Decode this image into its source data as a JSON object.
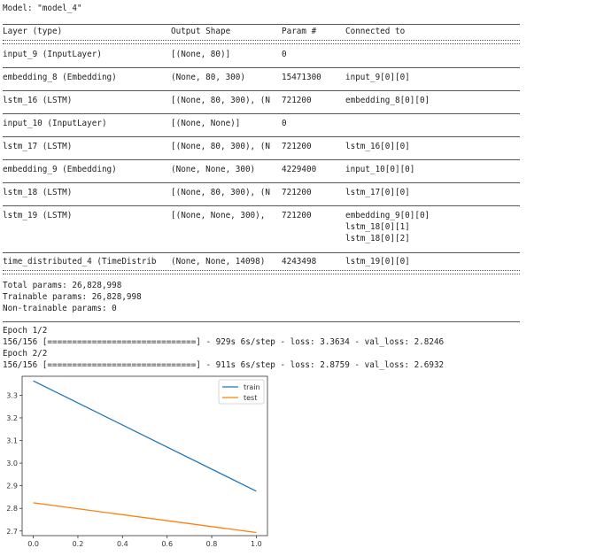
{
  "model_line": "Model: \"model_4\"",
  "headers": {
    "layer": "Layer (type)",
    "shape": "Output Shape",
    "param": "Param #",
    "conn": "Connected to"
  },
  "rows": [
    {
      "layer": "input_9 (InputLayer)",
      "shape": "[(None, 80)]",
      "param": "0",
      "conn": []
    },
    {
      "layer": "embedding_8 (Embedding)",
      "shape": "(None, 80, 300)",
      "param": "15471300",
      "conn": [
        "input_9[0][0]"
      ]
    },
    {
      "layer": "lstm_16 (LSTM)",
      "shape": "[(None, 80, 300), (N",
      "param": "721200",
      "conn": [
        "embedding_8[0][0]"
      ]
    },
    {
      "layer": "input_10 (InputLayer)",
      "shape": "[(None, None)]",
      "param": "0",
      "conn": []
    },
    {
      "layer": "lstm_17 (LSTM)",
      "shape": "[(None, 80, 300), (N",
      "param": "721200",
      "conn": [
        "lstm_16[0][0]"
      ]
    },
    {
      "layer": "embedding_9 (Embedding)",
      "shape": "(None, None, 300)",
      "param": "4229400",
      "conn": [
        "input_10[0][0]"
      ]
    },
    {
      "layer": "lstm_18 (LSTM)",
      "shape": "[(None, 80, 300), (N",
      "param": "721200",
      "conn": [
        "lstm_17[0][0]"
      ]
    },
    {
      "layer": "lstm_19 (LSTM)",
      "shape": "[(None, None, 300),",
      "param": "721200",
      "conn": [
        "embedding_9[0][0]",
        "lstm_18[0][1]",
        "lstm_18[0][2]"
      ]
    },
    {
      "layer": "time_distributed_4 (TimeDistrib",
      "shape": "(None, None, 14098)",
      "param": "4243498",
      "conn": [
        "lstm_19[0][0]"
      ]
    }
  ],
  "totals": {
    "total": "Total params: 26,828,998",
    "trainable": "Trainable params: 26,828,998",
    "non_trainable": "Non-trainable params: 0"
  },
  "training": {
    "epoch1": "Epoch 1/2",
    "epoch1_log": "156/156 [==============================] - 929s 6s/step - loss: 3.3634 - val_loss: 2.8246",
    "epoch2": "Epoch 2/2",
    "epoch2_log": "156/156 [==============================] - 911s 6s/step - loss: 2.8759 - val_loss: 2.6932"
  },
  "chart_data": {
    "type": "line",
    "title": "",
    "xlabel": "",
    "ylabel": "",
    "x": [
      0.0,
      1.0
    ],
    "xlim": [
      -0.05,
      1.05
    ],
    "ylim": [
      2.6795,
      3.3838
    ],
    "xticks": [
      "0.0",
      "0.2",
      "0.4",
      "0.6",
      "0.8",
      "1.0"
    ],
    "yticks": [
      "2.7",
      "2.8",
      "2.9",
      "3.0",
      "3.1",
      "3.2",
      "3.3"
    ],
    "grid": false,
    "legend": "top-right",
    "series": [
      {
        "name": "train",
        "values": [
          3.3634,
          2.8759
        ],
        "color": "#1f77b4"
      },
      {
        "name": "test",
        "values": [
          2.8246,
          2.6932
        ],
        "color": "#ff7f0e"
      }
    ]
  }
}
